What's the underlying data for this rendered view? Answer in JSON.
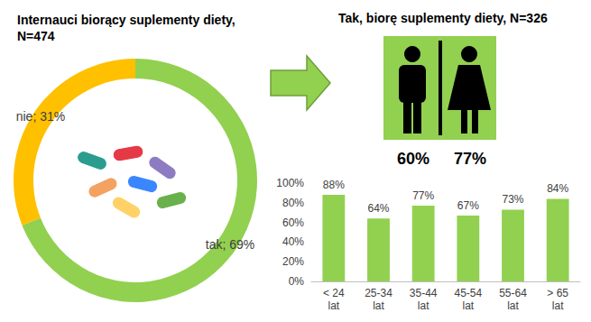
{
  "chart_data": [
    {
      "type": "pie",
      "title": "Internauci biorący suplementy diety, N=474",
      "categories": [
        "tak",
        "nie"
      ],
      "values": [
        69,
        31
      ],
      "value_labels": [
        "tak; 69%",
        "nie; 31%"
      ],
      "colors": [
        "#92d050",
        "#ffc000"
      ],
      "data_labels": true
    },
    {
      "type": "pictogram",
      "title": "Tak, biorę suplementy diety, N=326",
      "values": [
        60,
        77
      ],
      "value_labels": [
        "60%",
        "77%"
      ],
      "data_labels": true
    },
    {
      "type": "bar",
      "categories": [
        "< 24 lat",
        "25-34 lat",
        "35-44 lat",
        "45-54 lat",
        "55-64 lat",
        "> 65 lat"
      ],
      "values": [
        88,
        64,
        77,
        67,
        73,
        84
      ],
      "value_labels": [
        "88%",
        "64%",
        "77%",
        "67%",
        "73%",
        "84%"
      ],
      "color": "#92d050",
      "ylim": [
        0,
        100
      ],
      "yticks": [
        {
          "value": 0,
          "label": "0%"
        },
        {
          "value": 20,
          "label": "20%"
        },
        {
          "value": 40,
          "label": "40%"
        },
        {
          "value": 60,
          "label": "60%"
        },
        {
          "value": 80,
          "label": "80%"
        },
        {
          "value": 100,
          "label": "100%"
        }
      ],
      "grid": false,
      "data_labels": true
    }
  ]
}
